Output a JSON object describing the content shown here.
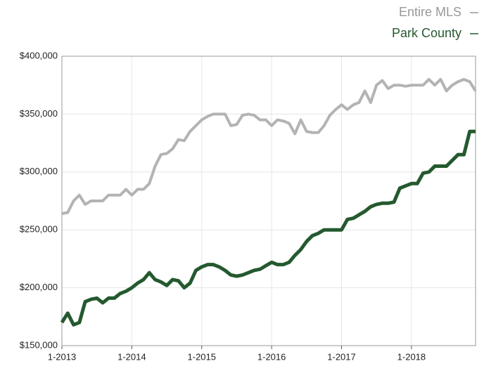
{
  "chart_data": {
    "type": "line",
    "categories": [
      "1-2013",
      null,
      null,
      null,
      null,
      null,
      null,
      null,
      null,
      null,
      null,
      null,
      "1-2014",
      null,
      null,
      null,
      null,
      null,
      null,
      null,
      null,
      null,
      null,
      null,
      "1-2015",
      null,
      null,
      null,
      null,
      null,
      null,
      null,
      null,
      null,
      null,
      null,
      "1-2016",
      null,
      null,
      null,
      null,
      null,
      null,
      null,
      null,
      null,
      null,
      null,
      "1-2017",
      null,
      null,
      null,
      null,
      null,
      null,
      null,
      null,
      null,
      null,
      null,
      "1-2018",
      null,
      null,
      null,
      null,
      null,
      null,
      null,
      null,
      null,
      null,
      null
    ],
    "series": [
      {
        "name": "Entire MLS",
        "color": "#b3b3b3",
        "values": [
          264000,
          265000,
          275000,
          280000,
          272000,
          275000,
          275000,
          275000,
          280000,
          280000,
          280000,
          285000,
          280000,
          285000,
          285000,
          290000,
          305000,
          315000,
          316000,
          320000,
          328000,
          327000,
          335000,
          340000,
          345000,
          348000,
          350000,
          350000,
          350000,
          340000,
          341000,
          349000,
          350000,
          349000,
          345000,
          345000,
          340000,
          345000,
          344000,
          342000,
          333000,
          345000,
          335000,
          334000,
          334000,
          340000,
          349000,
          354000,
          358000,
          354000,
          358000,
          360000,
          370000,
          360000,
          375000,
          379000,
          372000,
          375000,
          375000,
          374000,
          375000,
          375000,
          375000,
          380000,
          375000,
          380000,
          370000,
          375000,
          378000,
          380000,
          378000,
          370000
        ]
      },
      {
        "name": "Park County",
        "color": "#24592f",
        "values": [
          170000,
          178000,
          168000,
          170000,
          188000,
          190000,
          191000,
          187000,
          191000,
          191000,
          195000,
          197000,
          200000,
          204000,
          207000,
          213000,
          207000,
          205000,
          202000,
          207000,
          206000,
          200000,
          204000,
          215000,
          218000,
          220000,
          220000,
          218000,
          215000,
          211000,
          210000,
          211000,
          213000,
          215000,
          216000,
          219000,
          222000,
          220000,
          220000,
          222000,
          228000,
          233000,
          240000,
          245000,
          247000,
          250000,
          250000,
          250000,
          250000,
          259000,
          260000,
          263000,
          266000,
          270000,
          272000,
          273000,
          273000,
          274000,
          286000,
          288000,
          290000,
          290000,
          299000,
          300000,
          305000,
          305000,
          305000,
          310000,
          315000,
          315000,
          335000,
          335000
        ]
      }
    ],
    "ylim": [
      150000,
      400000
    ],
    "yticks": [
      {
        "value": 150000,
        "label": "$150,000"
      },
      {
        "value": 200000,
        "label": "$200,000"
      },
      {
        "value": 250000,
        "label": "$250,000"
      },
      {
        "value": 300000,
        "label": "$300,000"
      },
      {
        "value": 350000,
        "label": "$350,000"
      },
      {
        "value": 400000,
        "label": "$400,000"
      }
    ],
    "grid": true
  }
}
